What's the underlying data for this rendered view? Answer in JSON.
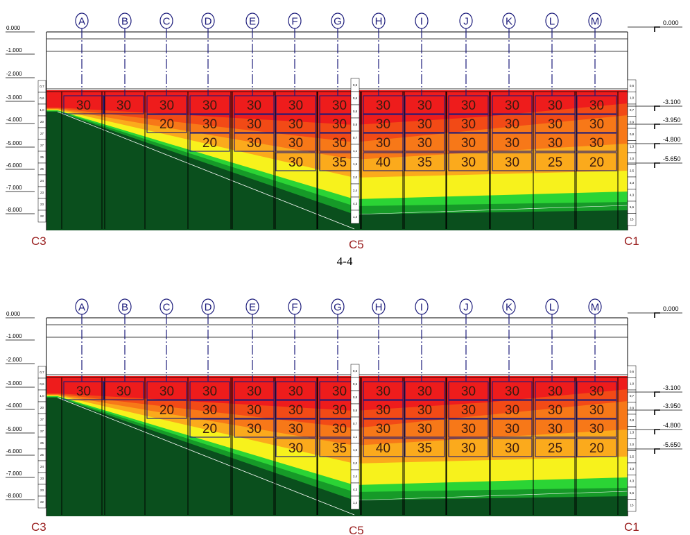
{
  "axes": [
    "A",
    "B",
    "C",
    "D",
    "E",
    "F",
    "G",
    "H",
    "I",
    "J",
    "K",
    "L",
    "M"
  ],
  "left_elevations": [
    "0.000",
    "-1.000",
    "-2.000",
    "-3.000",
    "-4.000",
    "-5.000",
    "-6.000",
    "-7.000",
    "-8.000"
  ],
  "right_levels": [
    "0.000",
    "-3.100",
    "-3.950",
    "-4.800",
    "-5.650"
  ],
  "title_between": "4-4",
  "sections": [
    {
      "id": "top",
      "labels": {
        "left": "C3",
        "mid": "C5",
        "right": "C1"
      }
    },
    {
      "id": "bottom",
      "labels": {
        "left": "C3",
        "mid": "C5",
        "right": "C1"
      }
    }
  ],
  "cells": [
    [
      "30",
      "",
      "",
      ""
    ],
    [
      "30",
      "",
      "",
      ""
    ],
    [
      "30",
      "20",
      "",
      ""
    ],
    [
      "30",
      "30",
      "20",
      ""
    ],
    [
      "30",
      "30",
      "30",
      ""
    ],
    [
      "30",
      "30",
      "30",
      "30"
    ],
    [
      "30",
      "30",
      "30",
      "35"
    ],
    [
      "30",
      "30",
      "30",
      "40"
    ],
    [
      "30",
      "30",
      "30",
      "35"
    ],
    [
      "30",
      "30",
      "30",
      "30"
    ],
    [
      "30",
      "30",
      "30",
      "30"
    ],
    [
      "30",
      "30",
      "30",
      "25"
    ],
    [
      "30",
      "30",
      "30",
      "20"
    ]
  ],
  "strip_left": [
    "0,7",
    "0,6",
    "1,0",
    "20",
    "27",
    "27",
    "25",
    "25",
    "24",
    "23",
    "23",
    "22"
  ],
  "strip_mid": [
    "0,5",
    "0,6",
    "0,8",
    "0,8",
    "0,7",
    "1,1",
    "1,6",
    "2,0",
    "2,4",
    "4,3",
    "1,4"
  ],
  "strip_right": [
    "0,6",
    "1,0",
    "0,7",
    "0,9",
    "0,8",
    "1,3",
    "2,0",
    "2,5",
    "3,3",
    "4,3",
    "5,6",
    "15"
  ],
  "colors": {
    "red": "#ee1c1c",
    "orange_red": "#f24a16",
    "orange": "#f77818",
    "light_orange": "#fbaa1c",
    "yellow": "#f7f21c",
    "green": "#2bd435",
    "mid_green": "#169a28",
    "dark_green": "#0a4f1d",
    "grid_blue": "#1a1a7a"
  }
}
